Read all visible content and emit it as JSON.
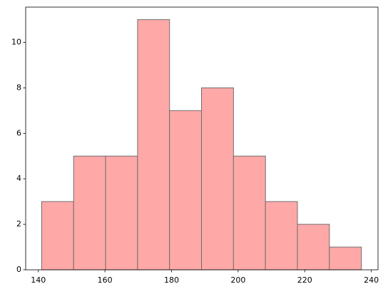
{
  "chart_data": {
    "type": "histogram",
    "bins": [
      141,
      150.6,
      160.2,
      169.8,
      179.4,
      189,
      198.6,
      208.2,
      217.8,
      227.4,
      237
    ],
    "values": [
      3,
      5,
      5,
      11,
      7,
      8,
      5,
      3,
      2,
      1
    ],
    "color": "#ffa8a8",
    "edgecolor": "#6e6e6e",
    "xlim": [
      136.2,
      242.0
    ],
    "xticks": [
      140,
      160,
      180,
      200,
      220,
      240
    ],
    "ylim": [
      0,
      11.55
    ],
    "yticks": [
      0,
      2,
      4,
      6,
      8,
      10
    ],
    "grid": false
  }
}
